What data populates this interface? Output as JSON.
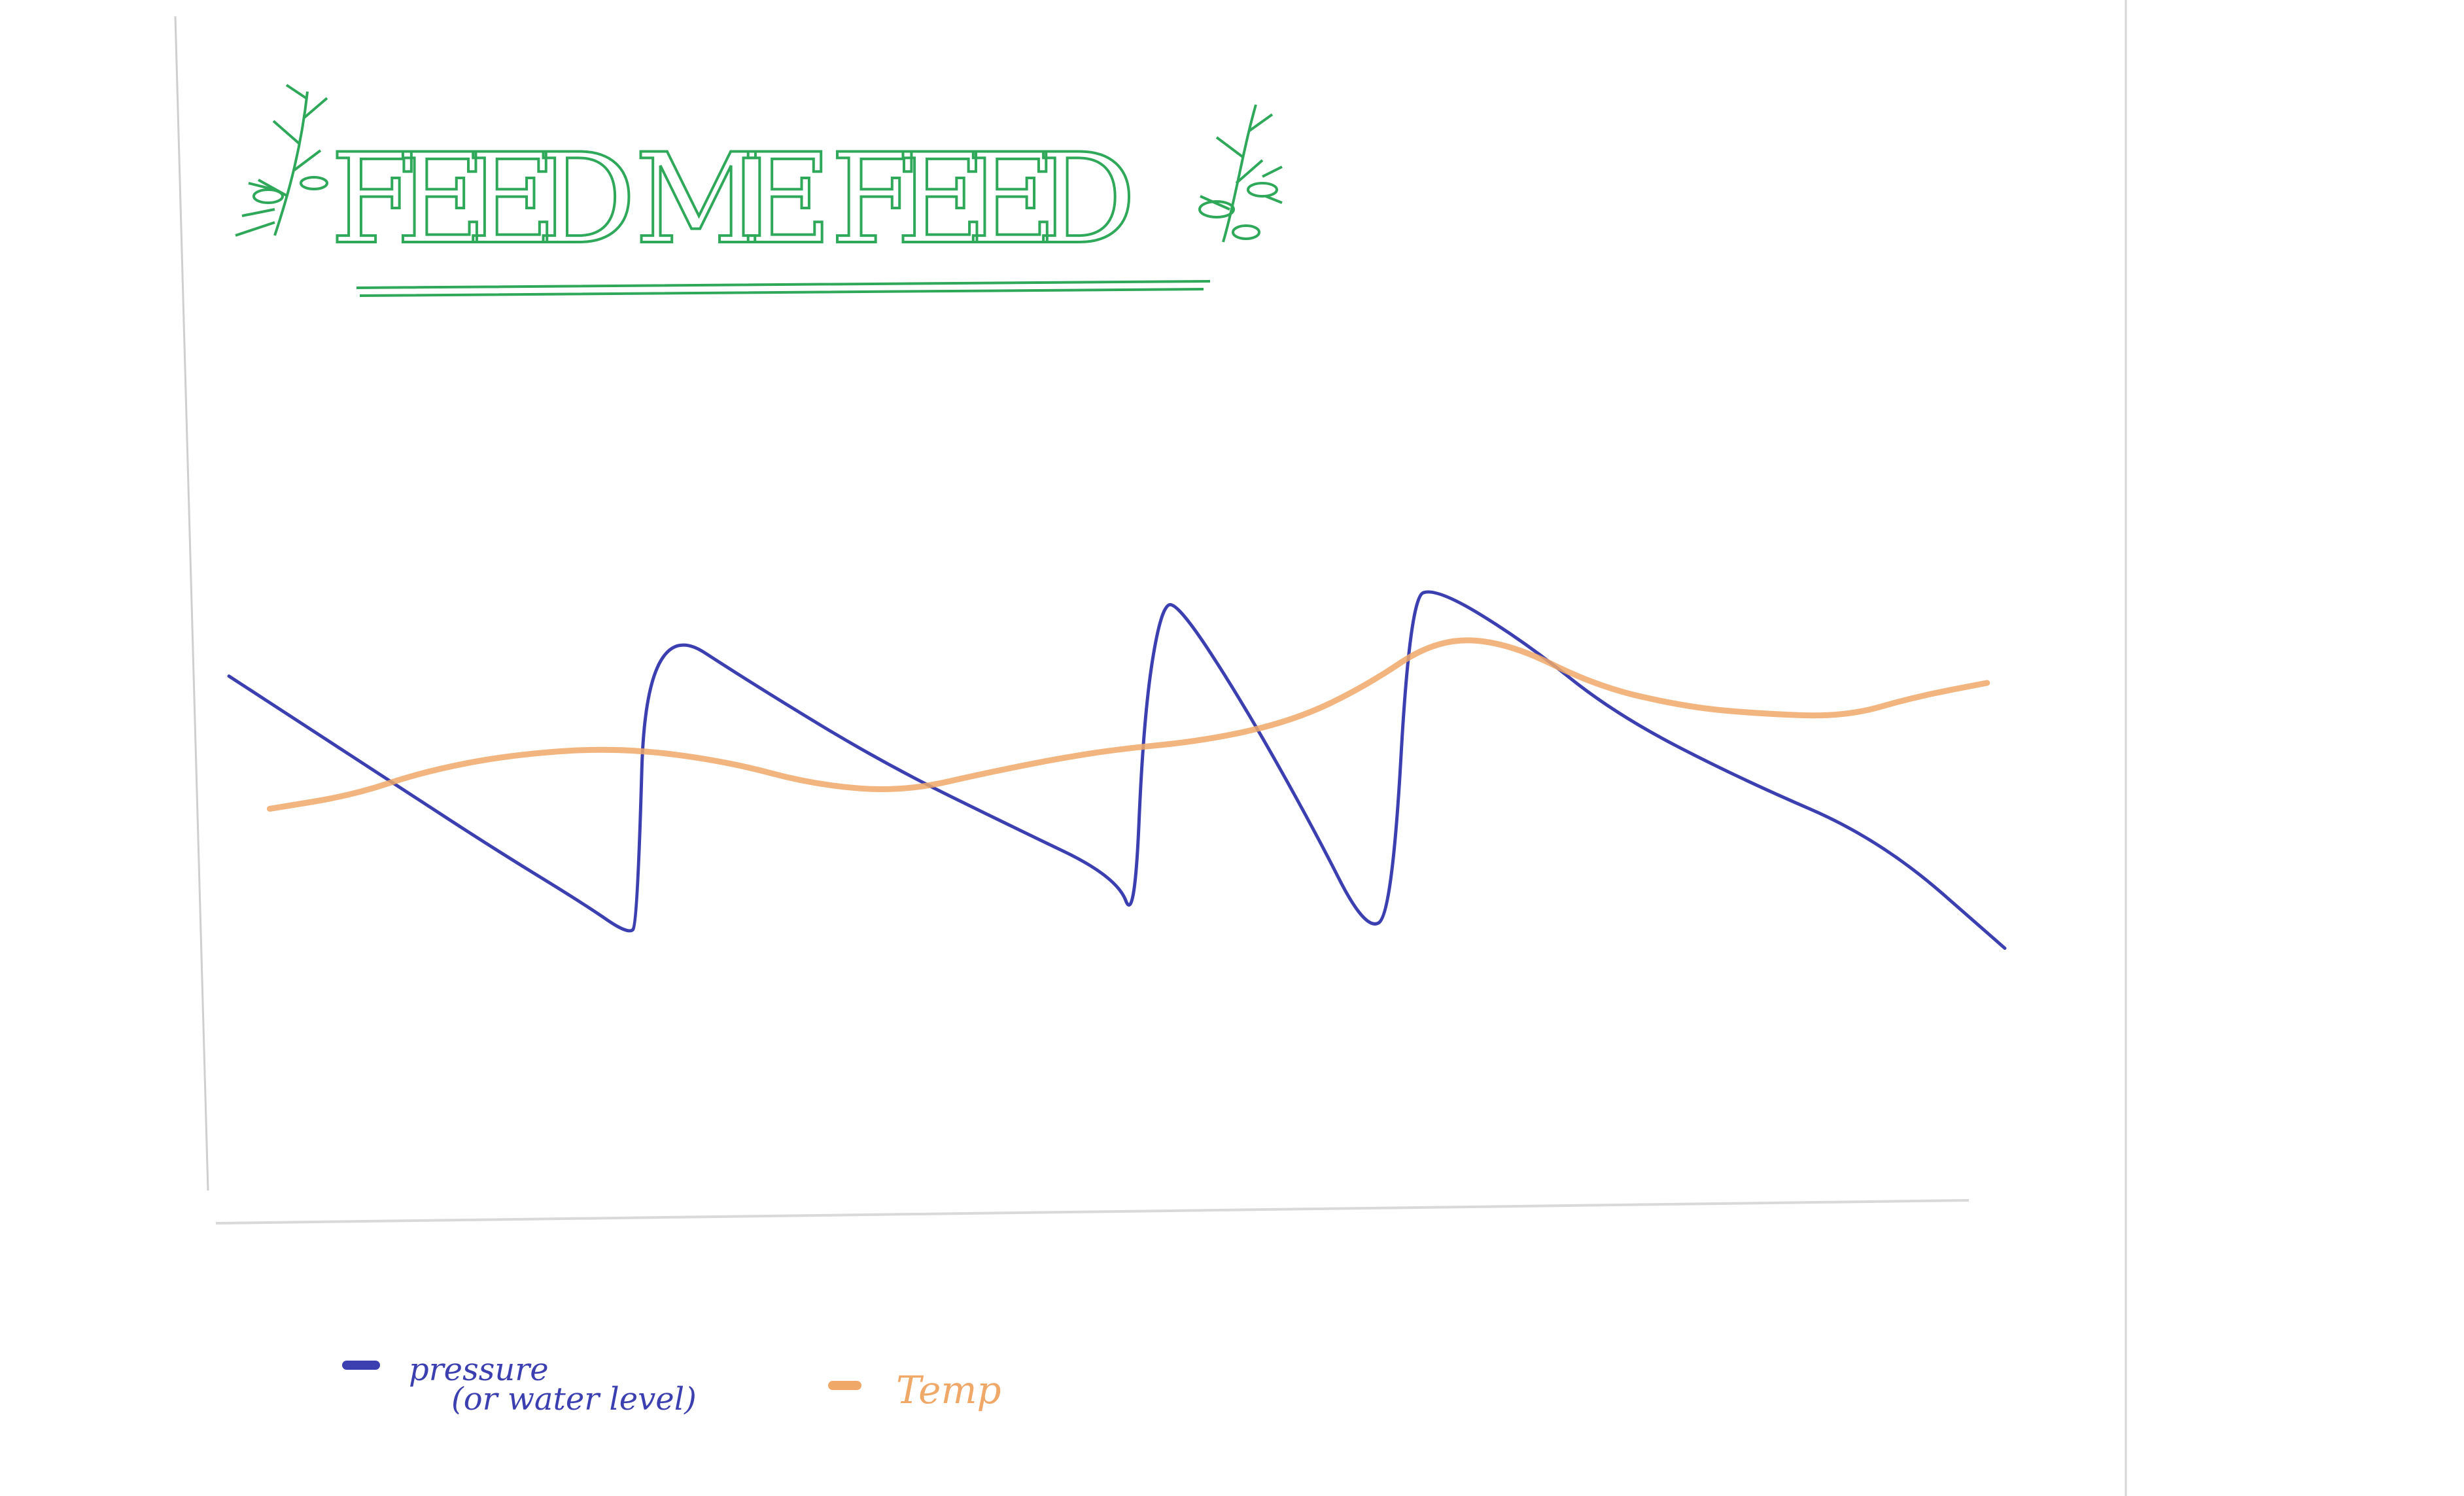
{
  "chart_data": {
    "type": "line",
    "title": "FEED ME FEED",
    "title_color": "#2fa85a",
    "x": [
      0,
      0.04,
      0.08,
      0.12,
      0.16,
      0.2,
      0.24,
      0.28,
      0.32,
      0.36,
      0.4,
      0.44,
      0.48,
      0.52,
      0.56,
      0.6,
      0.64,
      0.68,
      0.72,
      0.76,
      0.8,
      0.84,
      0.88,
      0.92,
      0.96,
      1.0
    ],
    "series": [
      {
        "name": "pressure (or water level)",
        "color": "#3b3fb0",
        "points": [
          [
            0.0,
            0.82
          ],
          [
            0.05,
            0.65
          ],
          [
            0.1,
            0.48
          ],
          [
            0.15,
            0.31
          ],
          [
            0.2,
            0.15
          ],
          [
            0.225,
            0.06
          ],
          [
            0.23,
            0.09
          ],
          [
            0.235,
            1.0
          ],
          [
            0.3,
            0.78
          ],
          [
            0.37,
            0.56
          ],
          [
            0.44,
            0.38
          ],
          [
            0.5,
            0.23
          ],
          [
            0.51,
            0.09
          ],
          [
            0.515,
            0.7
          ],
          [
            0.525,
            1.03
          ],
          [
            0.535,
            1.03
          ],
          [
            0.57,
            0.75
          ],
          [
            0.61,
            0.38
          ],
          [
            0.64,
            0.07
          ],
          [
            0.655,
            0.12
          ],
          [
            0.665,
            1.05
          ],
          [
            0.68,
            1.08
          ],
          [
            0.73,
            0.92
          ],
          [
            0.78,
            0.71
          ],
          [
            0.85,
            0.52
          ],
          [
            0.93,
            0.34
          ],
          [
            1.0,
            0.02
          ]
        ]
      },
      {
        "name": "Temp",
        "color": "#f0a868",
        "points": [
          [
            0.023,
            0.43
          ],
          [
            0.07,
            0.47
          ],
          [
            0.11,
            0.54
          ],
          [
            0.16,
            0.59
          ],
          [
            0.22,
            0.61
          ],
          [
            0.28,
            0.57
          ],
          [
            0.33,
            0.5
          ],
          [
            0.38,
            0.48
          ],
          [
            0.43,
            0.54
          ],
          [
            0.49,
            0.6
          ],
          [
            0.55,
            0.63
          ],
          [
            0.6,
            0.69
          ],
          [
            0.64,
            0.79
          ],
          [
            0.68,
            0.93
          ],
          [
            0.72,
            0.92
          ],
          [
            0.77,
            0.79
          ],
          [
            0.82,
            0.73
          ],
          [
            0.86,
            0.71
          ],
          [
            0.91,
            0.7
          ],
          [
            0.95,
            0.76
          ],
          [
            0.99,
            0.8
          ]
        ]
      }
    ],
    "legend": [
      {
        "label": "pressure",
        "sublabel": "(or water level)",
        "color": "#3b3fb0"
      },
      {
        "label": "Temp",
        "color": "#f0a868"
      }
    ],
    "xlabel": "",
    "ylabel": "",
    "grid": false
  }
}
